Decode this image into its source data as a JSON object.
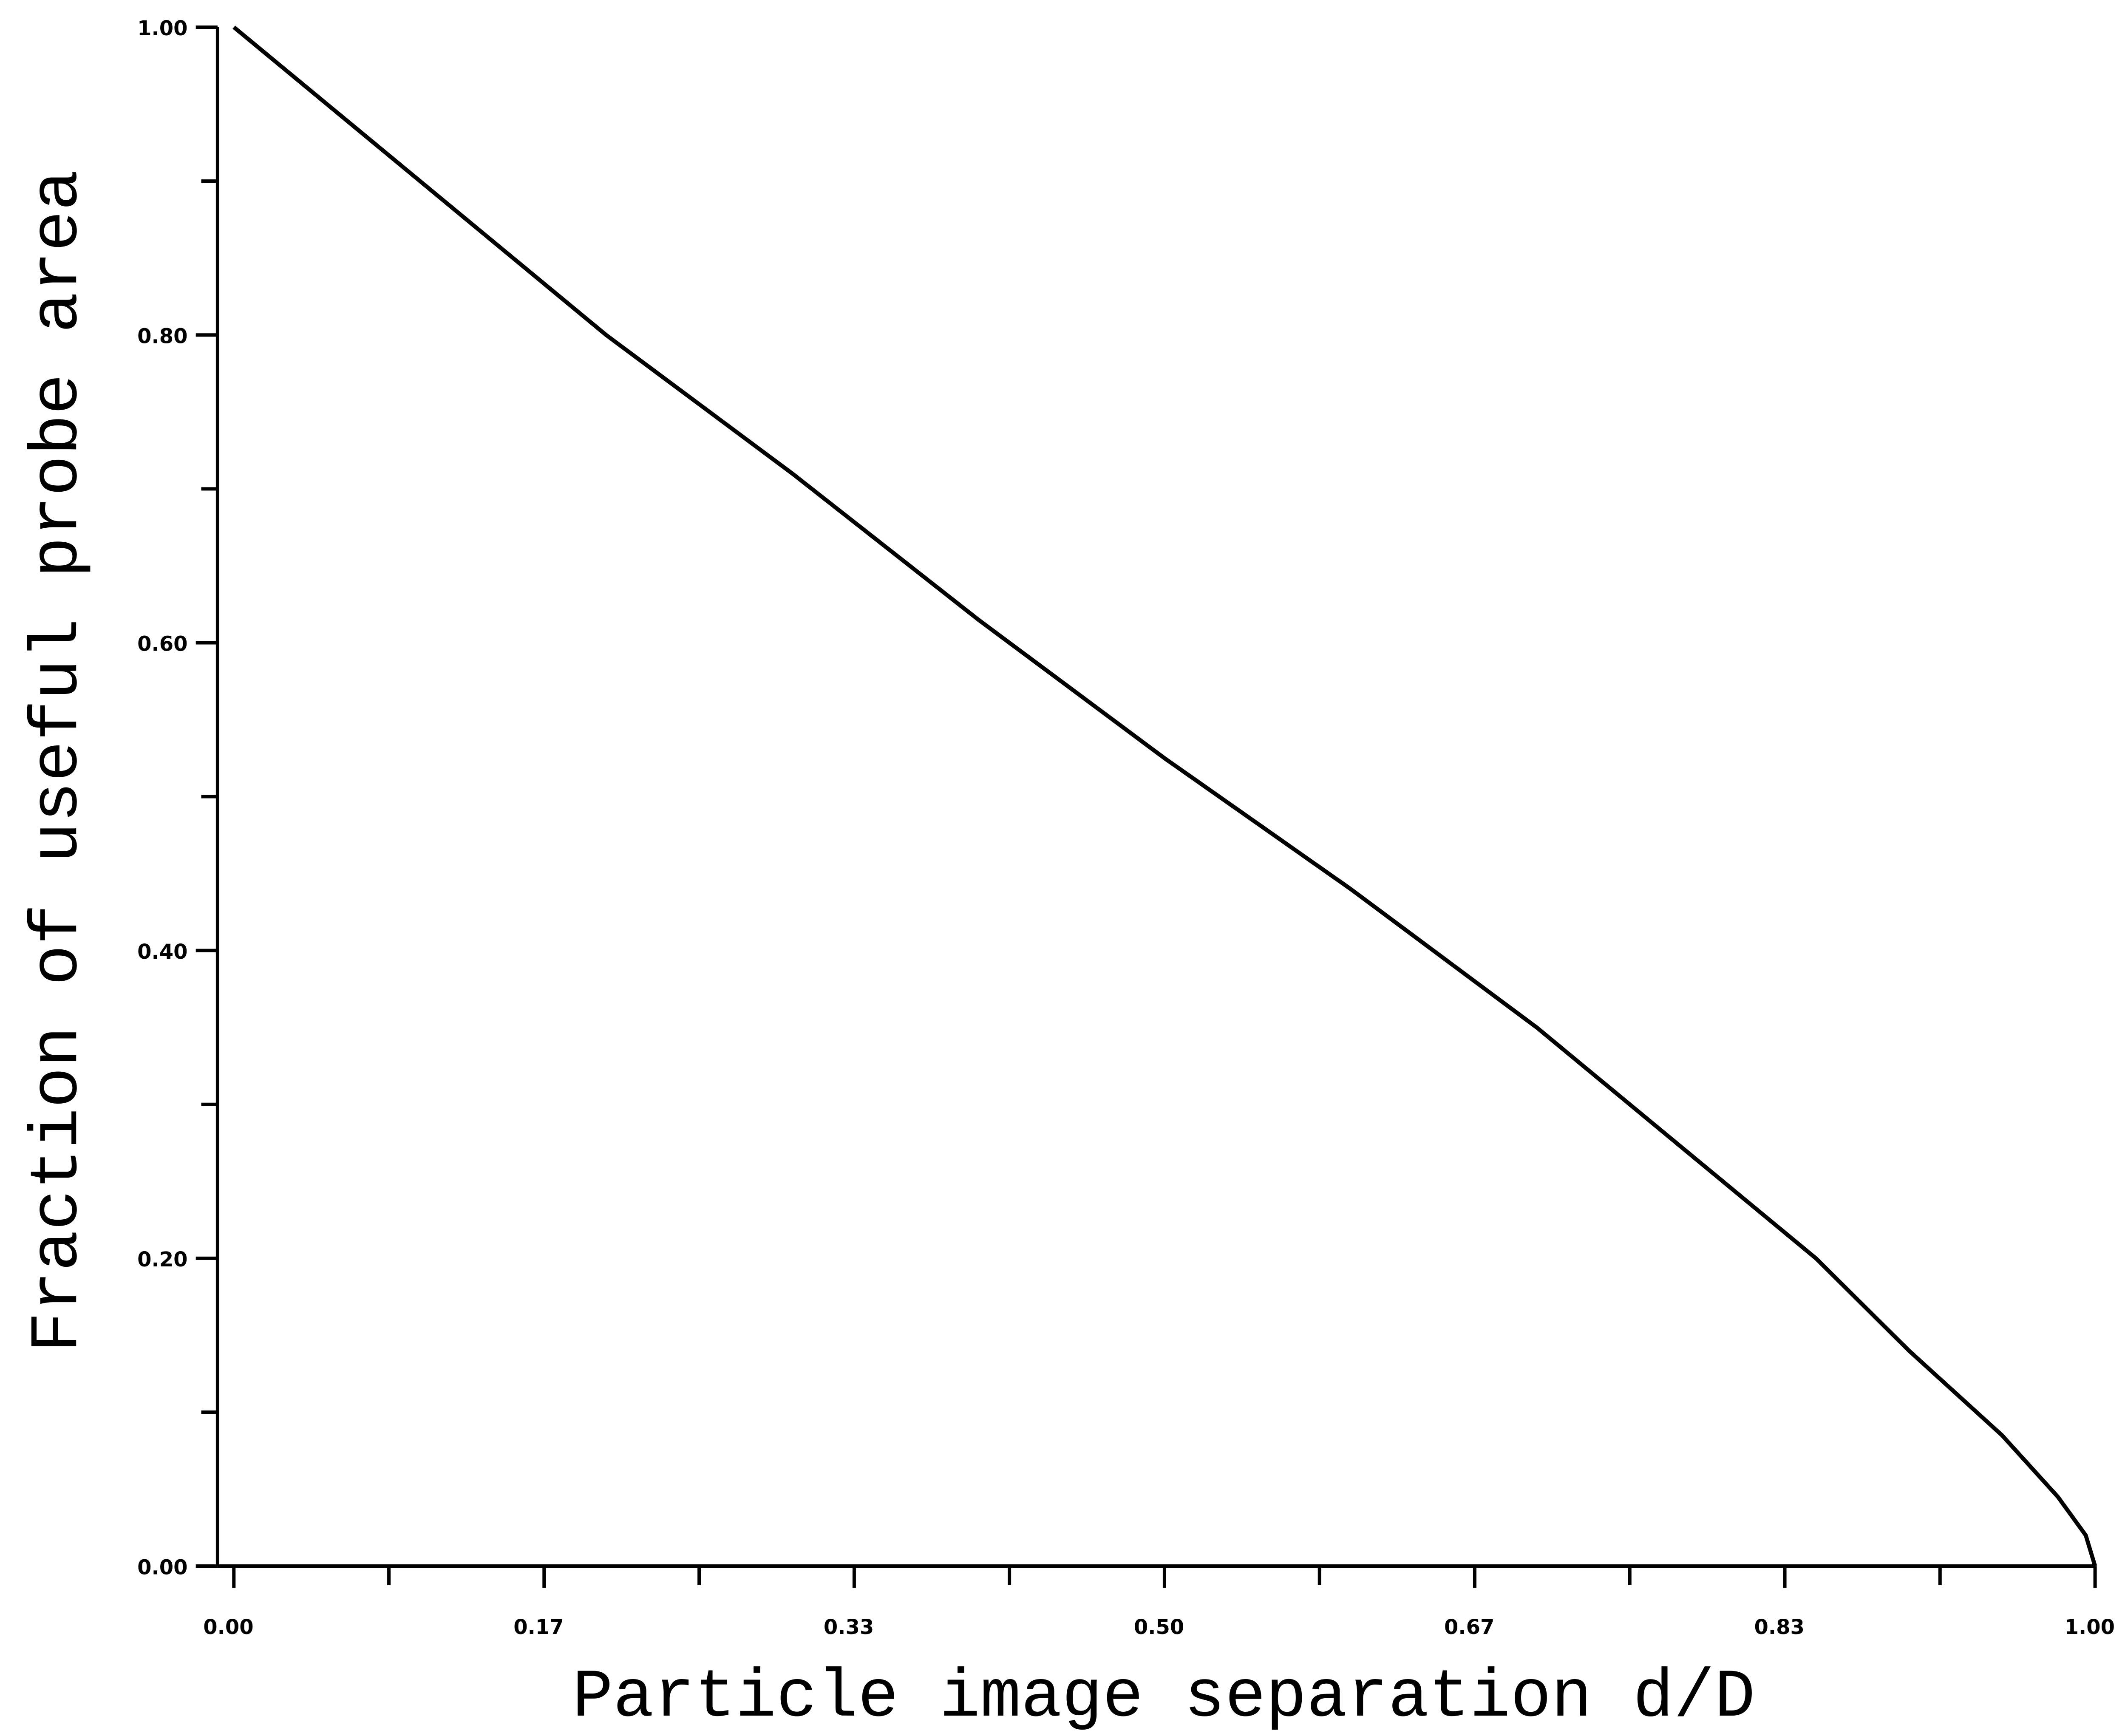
{
  "chart_data": {
    "type": "line",
    "xlabel": "Particle image separation d/D",
    "ylabel": "Fraction of useful probe area",
    "x": [
      0,
      0.1,
      0.2,
      0.3,
      0.4,
      0.5,
      0.6,
      0.7,
      0.8,
      0.85,
      0.9,
      0.95,
      0.98,
      0.995,
      1.0
    ],
    "series": [
      {
        "color": "#000000",
        "values": [
          1.0,
          0.9,
          0.8,
          0.71,
          0.615,
          0.525,
          0.44,
          0.35,
          0.25,
          0.2,
          0.14,
          0.085,
          0.045,
          0.02,
          0.0
        ]
      }
    ],
    "xlim": [
      0,
      1
    ],
    "ylim": [
      0,
      1
    ],
    "xticks": [
      {
        "value": 0,
        "label": "0.00"
      },
      {
        "value": 0.1667,
        "label": "0.17"
      },
      {
        "value": 0.3333,
        "label": "0.33"
      },
      {
        "value": 0.5,
        "label": "0.50"
      },
      {
        "value": 0.6667,
        "label": "0.67"
      },
      {
        "value": 0.8333,
        "label": "0.83"
      },
      {
        "value": 1,
        "label": "1.00"
      }
    ],
    "xminor": [
      0.0833,
      0.25,
      0.4167,
      0.5833,
      0.75,
      0.9167
    ],
    "yticks": [
      {
        "value": 0,
        "label": "0.00"
      },
      {
        "value": 0.2,
        "label": "0.20"
      },
      {
        "value": 0.4,
        "label": "0.40"
      },
      {
        "value": 0.6,
        "label": "0.60"
      },
      {
        "value": 0.8,
        "label": "0.80"
      },
      {
        "value": 1,
        "label": "1.00"
      }
    ],
    "yminor": [
      0.1,
      0.3,
      0.5,
      0.7,
      0.9
    ],
    "grid": false
  }
}
